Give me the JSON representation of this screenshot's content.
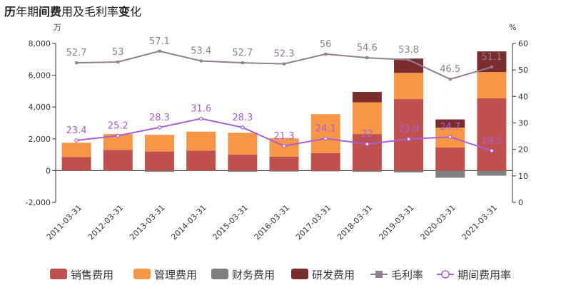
{
  "title": {
    "parts": [
      {
        "text": "历",
        "bold": true
      },
      {
        "text": "年期",
        "bold": false
      },
      {
        "text": "间费",
        "bold": true
      },
      {
        "text": "用及毛利率",
        "bold": false
      },
      {
        "text": "变",
        "bold": true
      },
      {
        "text": "化",
        "bold": false
      }
    ]
  },
  "colors": {
    "sales": "#c0504d",
    "mgmt": "#f79646",
    "finance": "#7f7f7f",
    "rd": "#7b2c2c",
    "gross": "#8f7f91",
    "period": "#a75fd8"
  },
  "chart_data": {
    "type": "bar",
    "title": "历年期间费用及毛利率变化",
    "left_unit": "万",
    "right_unit": "%",
    "categories": [
      "2011-03-31",
      "2012-03-31",
      "2013-03-31",
      "2014-03-31",
      "2015-03-31",
      "2016-03-31",
      "2017-03-31",
      "2018-03-31",
      "2019-03-31",
      "2020-03-31",
      "2021-03-31"
    ],
    "ylim_left": [
      -2000,
      8000
    ],
    "yticks_left": [
      -2000,
      0,
      2000,
      4000,
      6000,
      8000
    ],
    "ytick_labels_left": [
      "-2,000",
      "0",
      "2,000",
      "4,000",
      "6,000",
      "8,000"
    ],
    "ylim_right": [
      0,
      60
    ],
    "yticks_right": [
      0,
      10,
      20,
      30,
      40,
      50,
      60
    ],
    "series": [
      {
        "key": "sales",
        "name": "销售费用",
        "kind": "bar",
        "values": [
          850,
          1300,
          1200,
          1250,
          1000,
          880,
          1100,
          2300,
          4500,
          1450,
          4550
        ]
      },
      {
        "key": "mgmt",
        "name": "管理费用",
        "kind": "bar",
        "values": [
          900,
          1000,
          1050,
          1200,
          1380,
          1150,
          2450,
          2000,
          1650,
          1250,
          1650
        ]
      },
      {
        "key": "finance",
        "name": "财务费用",
        "kind": "bar",
        "values": [
          -20,
          -30,
          -80,
          -30,
          -80,
          -60,
          -50,
          -80,
          -120,
          -450,
          -320
        ]
      },
      {
        "key": "rd",
        "name": "研发费用",
        "kind": "bar",
        "values": [
          0,
          0,
          0,
          0,
          0,
          0,
          0,
          650,
          900,
          520,
          1300
        ]
      },
      {
        "key": "gross",
        "name": "毛利率",
        "kind": "line",
        "axis": "right",
        "values": [
          52.7,
          53,
          57.1,
          53.4,
          52.7,
          52.3,
          56,
          54.6,
          53.8,
          46.5,
          51.1
        ],
        "labels": [
          "52.7",
          "53",
          "57.1",
          "53.4",
          "52.7",
          "52.3",
          "56",
          "54.6",
          "53.8",
          "46.5",
          "51.1"
        ]
      },
      {
        "key": "period",
        "name": "期间费用率",
        "kind": "line",
        "axis": "right",
        "values": [
          23.4,
          25.2,
          28.3,
          31.6,
          28.3,
          21.3,
          24.1,
          22,
          23.9,
          24.7,
          19.5
        ],
        "labels": [
          "23.4",
          "25.2",
          "28.3",
          "31.6",
          "28.3",
          "21.3",
          "24.1",
          "22",
          "23.9",
          "24.7",
          "19.5"
        ]
      }
    ],
    "legend_position": "bottom",
    "grid": false
  }
}
